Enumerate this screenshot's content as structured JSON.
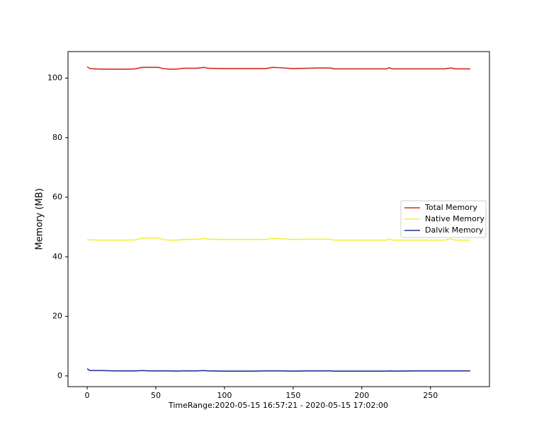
{
  "chart_data": {
    "type": "line",
    "xlabel": "TimeRange:2020-05-15 16:57:21 - 2020-05-15 17:02:00",
    "ylabel": "Memory (MB)",
    "x": [
      0,
      2,
      10,
      20,
      30,
      35,
      40,
      45,
      52,
      55,
      60,
      65,
      70,
      80,
      85,
      88,
      100,
      110,
      120,
      130,
      135,
      140,
      150,
      160,
      170,
      177,
      180,
      200,
      218,
      220,
      222,
      240,
      260,
      265,
      268,
      279
    ],
    "series": [
      {
        "name": "Total Memory",
        "color": "#d42a1f",
        "values": [
          103.8,
          103.2,
          103.0,
          103.0,
          103.0,
          103.1,
          103.6,
          103.6,
          103.6,
          103.2,
          103.0,
          103.0,
          103.3,
          103.3,
          103.6,
          103.3,
          103.2,
          103.2,
          103.2,
          103.2,
          103.6,
          103.5,
          103.2,
          103.3,
          103.4,
          103.4,
          103.1,
          103.1,
          103.1,
          103.5,
          103.1,
          103.1,
          103.1,
          103.4,
          103.1,
          103.1
        ]
      },
      {
        "name": "Native Memory",
        "color": "#f5f03c",
        "values": [
          45.8,
          45.7,
          45.6,
          45.6,
          45.6,
          45.7,
          46.2,
          46.3,
          46.3,
          45.8,
          45.6,
          45.6,
          45.8,
          45.9,
          46.2,
          45.9,
          45.8,
          45.8,
          45.8,
          45.8,
          46.2,
          46.1,
          45.8,
          45.9,
          45.9,
          45.9,
          45.6,
          45.6,
          45.6,
          46.0,
          45.6,
          45.6,
          45.6,
          46.0,
          45.6,
          45.6
        ]
      },
      {
        "name": "Dalvik Memory",
        "color": "#1f2e9e",
        "values": [
          2.4,
          1.8,
          1.8,
          1.7,
          1.7,
          1.7,
          1.8,
          1.7,
          1.7,
          1.7,
          1.7,
          1.6,
          1.7,
          1.7,
          1.8,
          1.7,
          1.6,
          1.6,
          1.6,
          1.7,
          1.7,
          1.7,
          1.6,
          1.7,
          1.7,
          1.7,
          1.6,
          1.6,
          1.6,
          1.7,
          1.6,
          1.7,
          1.7,
          1.7,
          1.7,
          1.7
        ]
      }
    ],
    "xlim": [
      -13.95,
      292.95
    ],
    "xticks": [
      0,
      50,
      100,
      150,
      200,
      250
    ],
    "ylim": [
      -3.6,
      108.9
    ],
    "yticks": [
      0,
      20,
      40,
      60,
      80,
      100
    ],
    "legend": "right"
  }
}
